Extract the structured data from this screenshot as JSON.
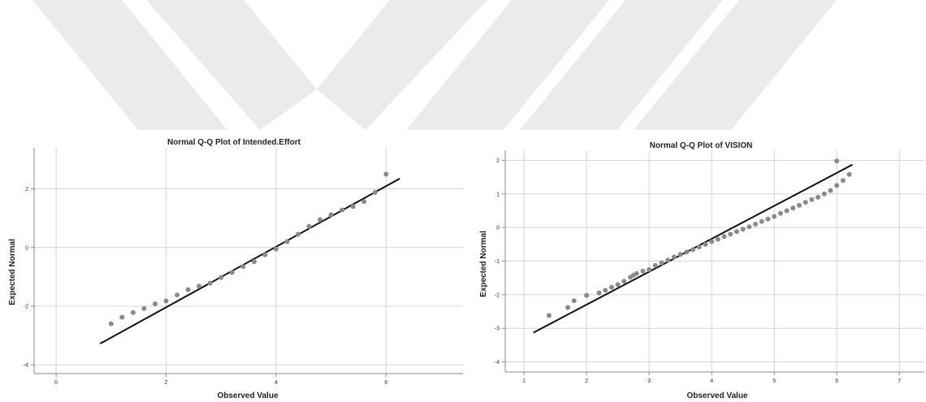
{
  "colors": {
    "point": "#8a8a8a",
    "line": "#111111",
    "grid": "#d4d4d4",
    "axis": "#888888",
    "watermark": "#ebebeb"
  },
  "chart_data": [
    {
      "type": "scatter",
      "title": "Normal Q-Q Plot of Intended.Effort",
      "xlabel": "Observed Value",
      "ylabel": "Expected Normal",
      "xlim": [
        -0.4,
        7.4
      ],
      "ylim": [
        -4.3,
        3.4
      ],
      "xticks": [
        0,
        2,
        4,
        6
      ],
      "yticks": [
        -4,
        -2,
        0,
        2
      ],
      "xtick_labels": [
        "0",
        "2",
        "4",
        "6"
      ],
      "ytick_labels": [
        "-4",
        "-2",
        "0",
        "2"
      ],
      "grid": true,
      "reference_line": {
        "x": [
          0.8,
          6.25
        ],
        "y": [
          -3.28,
          2.35
        ]
      },
      "points": [
        {
          "x": 1.0,
          "y": -2.6
        },
        {
          "x": 1.2,
          "y": -2.38
        },
        {
          "x": 1.4,
          "y": -2.22
        },
        {
          "x": 1.6,
          "y": -2.08
        },
        {
          "x": 1.8,
          "y": -1.92
        },
        {
          "x": 2.0,
          "y": -1.82
        },
        {
          "x": 2.2,
          "y": -1.62
        },
        {
          "x": 2.4,
          "y": -1.44
        },
        {
          "x": 2.6,
          "y": -1.32
        },
        {
          "x": 2.8,
          "y": -1.22
        },
        {
          "x": 3.0,
          "y": -1.02
        },
        {
          "x": 3.2,
          "y": -0.85
        },
        {
          "x": 3.4,
          "y": -0.65
        },
        {
          "x": 3.6,
          "y": -0.48
        },
        {
          "x": 3.8,
          "y": -0.25
        },
        {
          "x": 4.0,
          "y": -0.05
        },
        {
          "x": 4.2,
          "y": 0.2
        },
        {
          "x": 4.4,
          "y": 0.45
        },
        {
          "x": 4.6,
          "y": 0.72
        },
        {
          "x": 4.8,
          "y": 0.95
        },
        {
          "x": 5.0,
          "y": 1.12
        },
        {
          "x": 5.2,
          "y": 1.28
        },
        {
          "x": 5.4,
          "y": 1.4
        },
        {
          "x": 5.6,
          "y": 1.57
        },
        {
          "x": 5.8,
          "y": 1.88
        },
        {
          "x": 6.0,
          "y": 2.5
        }
      ]
    },
    {
      "type": "scatter",
      "title": "Normal Q-Q Plot of VISION",
      "xlabel": "Observed Value",
      "ylabel": "Expected Normal",
      "xlim": [
        0.7,
        7.4
      ],
      "ylim": [
        -4.3,
        2.3
      ],
      "xticks": [
        1,
        2,
        3,
        4,
        5,
        6,
        7
      ],
      "yticks": [
        -4,
        -3,
        -2,
        -1,
        0,
        1,
        2
      ],
      "xtick_labels": [
        "1",
        "2",
        "3",
        "4",
        "5",
        "6",
        "7"
      ],
      "ytick_labels": [
        "-4",
        "-3",
        "-2",
        "-1",
        "0",
        "1",
        "2"
      ],
      "grid": true,
      "reference_line": {
        "x": [
          1.15,
          6.25
        ],
        "y": [
          -3.13,
          1.87
        ]
      },
      "points": [
        {
          "x": 1.4,
          "y": -2.62
        },
        {
          "x": 1.7,
          "y": -2.38
        },
        {
          "x": 1.8,
          "y": -2.18
        },
        {
          "x": 2.0,
          "y": -2.02
        },
        {
          "x": 2.2,
          "y": -1.95
        },
        {
          "x": 2.3,
          "y": -1.87
        },
        {
          "x": 2.4,
          "y": -1.78
        },
        {
          "x": 2.5,
          "y": -1.7
        },
        {
          "x": 2.6,
          "y": -1.6
        },
        {
          "x": 2.7,
          "y": -1.48
        },
        {
          "x": 2.75,
          "y": -1.42
        },
        {
          "x": 2.8,
          "y": -1.37
        },
        {
          "x": 2.9,
          "y": -1.3
        },
        {
          "x": 3.0,
          "y": -1.25
        },
        {
          "x": 3.1,
          "y": -1.13
        },
        {
          "x": 3.2,
          "y": -1.05
        },
        {
          "x": 3.3,
          "y": -0.97
        },
        {
          "x": 3.4,
          "y": -0.88
        },
        {
          "x": 3.5,
          "y": -0.8
        },
        {
          "x": 3.6,
          "y": -0.73
        },
        {
          "x": 3.7,
          "y": -0.66
        },
        {
          "x": 3.8,
          "y": -0.58
        },
        {
          "x": 3.9,
          "y": -0.5
        },
        {
          "x": 4.0,
          "y": -0.42
        },
        {
          "x": 4.1,
          "y": -0.35
        },
        {
          "x": 4.2,
          "y": -0.27
        },
        {
          "x": 4.3,
          "y": -0.2
        },
        {
          "x": 4.4,
          "y": -0.12
        },
        {
          "x": 4.5,
          "y": -0.05
        },
        {
          "x": 4.6,
          "y": 0.02
        },
        {
          "x": 4.7,
          "y": 0.1
        },
        {
          "x": 4.8,
          "y": 0.18
        },
        {
          "x": 4.9,
          "y": 0.25
        },
        {
          "x": 5.0,
          "y": 0.33
        },
        {
          "x": 5.1,
          "y": 0.42
        },
        {
          "x": 5.2,
          "y": 0.5
        },
        {
          "x": 5.3,
          "y": 0.58
        },
        {
          "x": 5.4,
          "y": 0.66
        },
        {
          "x": 5.5,
          "y": 0.75
        },
        {
          "x": 5.6,
          "y": 0.83
        },
        {
          "x": 5.7,
          "y": 0.9
        },
        {
          "x": 5.8,
          "y": 1.0
        },
        {
          "x": 5.9,
          "y": 1.1
        },
        {
          "x": 6.0,
          "y": 1.25
        },
        {
          "x": 6.1,
          "y": 1.4
        },
        {
          "x": 6.2,
          "y": 1.58
        },
        {
          "x": 6.0,
          "y": 1.98
        }
      ]
    }
  ]
}
